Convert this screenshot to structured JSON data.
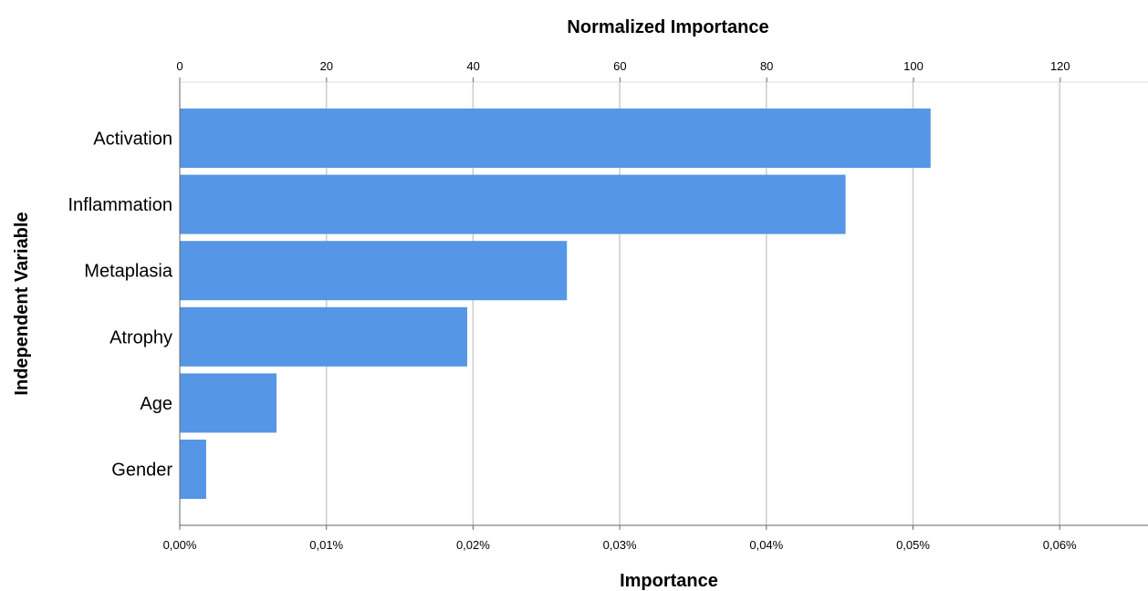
{
  "chart_data": {
    "type": "bar",
    "orientation": "horizontal",
    "categories": [
      "Activation",
      "Inflammation",
      "Metaplasia",
      "Atrophy",
      "Age",
      "Gender"
    ],
    "values": [
      0.0512,
      0.0454,
      0.0264,
      0.0196,
      0.0066,
      0.0018
    ],
    "normalized_values": [
      100,
      88.7,
      51.6,
      38.3,
      12.9,
      3.5
    ],
    "bar_color": "#5596e6",
    "xlabel": "Importance",
    "ylabel": "Independent Variable",
    "x2label": "Normalized Importance",
    "xlim": [
      0,
      0.065
    ],
    "x2lim": [
      0,
      130
    ],
    "xticks": [
      "0,00%",
      "0,01%",
      "0,02%",
      "0,03%",
      "0,04%",
      "0,05%",
      "0,06%"
    ],
    "xtick_values": [
      0,
      0.01,
      0.02,
      0.03,
      0.04,
      0.05,
      0.06
    ],
    "x2ticks": [
      "0",
      "20",
      "40",
      "60",
      "80",
      "100",
      "120"
    ],
    "x2tick_values": [
      0,
      20,
      40,
      60,
      80,
      100,
      120
    ],
    "grid": "vertical"
  }
}
